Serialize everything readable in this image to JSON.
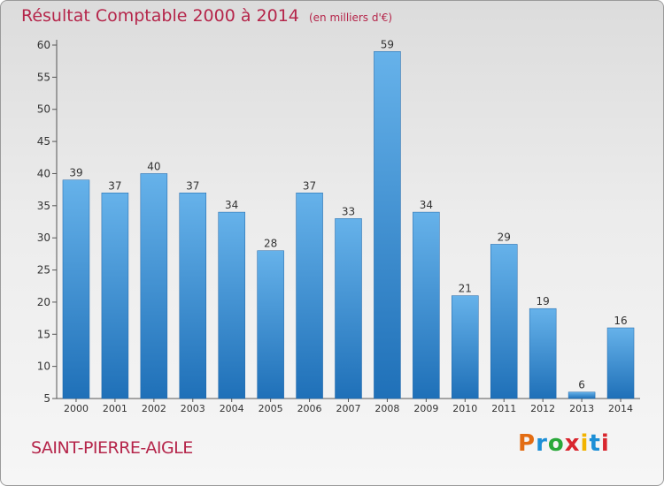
{
  "header": {
    "title": "Résultat Comptable 2000 à 2014",
    "unit": "(en milliers d'€)"
  },
  "footer": {
    "town": "SAINT-PIERRE-AIGLE",
    "logo": "Proxiti",
    "logo_colors": [
      "#e36c12",
      "#1d8fd6",
      "#2aa83a",
      "#d9262e",
      "#f2b300",
      "#1d8fd6",
      "#d9262e"
    ]
  },
  "colors": {
    "title": "#b5254a",
    "bar_top": "#66b2ea",
    "bar_bottom": "#1f70b8"
  },
  "chart_data": {
    "type": "bar",
    "title": "Résultat Comptable 2000 à 2014",
    "xlabel": "",
    "ylabel": "",
    "categories": [
      "2000",
      "2001",
      "2002",
      "2003",
      "2004",
      "2005",
      "2006",
      "2007",
      "2008",
      "2009",
      "2010",
      "2011",
      "2012",
      "2013",
      "2014"
    ],
    "values": [
      39,
      37,
      40,
      37,
      34,
      28,
      37,
      33,
      59,
      34,
      21,
      29,
      19,
      6,
      16
    ],
    "ylim": [
      5,
      60
    ],
    "yticks": [
      5,
      10,
      15,
      20,
      25,
      30,
      35,
      40,
      45,
      50,
      55,
      60
    ],
    "grid": false,
    "data_labels": true
  }
}
